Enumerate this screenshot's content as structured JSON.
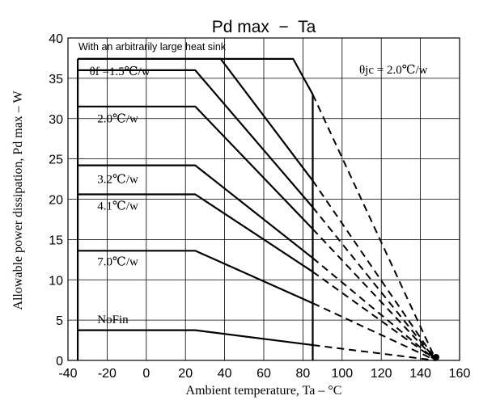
{
  "chart_data": {
    "type": "line",
    "title": "Pd max  −  Ta",
    "xlabel": "Ambient temperature, Ta – °C",
    "ylabel": "Allowable power dissipation, Pd max – W",
    "xlim": [
      -40,
      160
    ],
    "ylim": [
      0,
      40
    ],
    "x_ticks": [
      -40,
      -20,
      0,
      20,
      40,
      60,
      80,
      100,
      120,
      140,
      160
    ],
    "y_ticks": [
      0,
      5,
      10,
      15,
      20,
      25,
      30,
      35,
      40
    ],
    "grid": true,
    "limit_x": -35,
    "limit_label": "With an arbitrarily large heat sink",
    "theta_jc_label": "θjc = 2.0℃/w",
    "series": [
      {
        "label": "",
        "points": [
          [
            -35,
            37.4
          ],
          [
            75,
            37.4
          ],
          [
            85,
            33
          ],
          [
            85,
            0
          ]
        ],
        "dashed_to": [
          148,
          0
        ]
      },
      {
        "label": "",
        "points": [
          [
            -35,
            37.4
          ],
          [
            38,
            37.4
          ],
          [
            85,
            22.3
          ]
        ],
        "dashed_to": [
          148,
          0
        ]
      },
      {
        "label": "θf =1.5℃/w",
        "points": [
          [
            -35,
            36
          ],
          [
            25,
            36
          ],
          [
            85,
            19
          ]
        ],
        "dashed_to": [
          148,
          0
        ]
      },
      {
        "label": "2.0℃/w",
        "points": [
          [
            -35,
            31.5
          ],
          [
            25,
            31.5
          ],
          [
            85,
            16.3
          ]
        ],
        "dashed_to": [
          148,
          0
        ]
      },
      {
        "label": "3.2℃/w",
        "points": [
          [
            -35,
            24.2
          ],
          [
            25,
            24.2
          ],
          [
            85,
            12.7
          ]
        ],
        "dashed_to": [
          148,
          0
        ]
      },
      {
        "label": "4.1℃/w",
        "points": [
          [
            -35,
            20.6
          ],
          [
            25,
            20.6
          ],
          [
            85,
            11
          ]
        ],
        "dashed_to": [
          148,
          0
        ]
      },
      {
        "label": "7.0℃/w",
        "points": [
          [
            -35,
            13.6
          ],
          [
            25,
            13.6
          ],
          [
            85,
            7.1
          ]
        ],
        "dashed_to": [
          148,
          0
        ]
      },
      {
        "label": "NoFin",
        "points": [
          [
            -35,
            3.75
          ],
          [
            25,
            3.75
          ],
          [
            85,
            1.9
          ]
        ],
        "dashed_to": [
          148,
          0
        ]
      }
    ]
  }
}
